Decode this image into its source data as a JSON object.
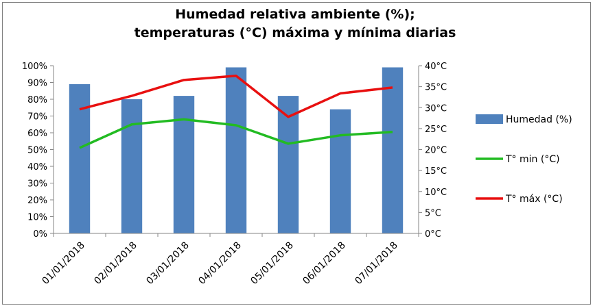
{
  "chart_data": {
    "type": "bar+line",
    "title_line1": "Humedad relativa ambiente (%);",
    "title_line2": "temperaturas (°C) máxima y mínima diarias",
    "categories": [
      "01/01/2018",
      "02/01/2018",
      "03/01/2018",
      "04/01/2018",
      "05/01/2018",
      "06/01/2018",
      "07/01/2018"
    ],
    "y_left": {
      "ylim": [
        0,
        100
      ],
      "ticks": [
        0,
        10,
        20,
        30,
        40,
        50,
        60,
        70,
        80,
        90,
        100
      ],
      "tick_labels": [
        "0%",
        "10%",
        "20%",
        "30%",
        "40%",
        "50%",
        "60%",
        "70%",
        "80%",
        "90%",
        "100%"
      ]
    },
    "y_right": {
      "ylim": [
        0,
        40
      ],
      "ticks": [
        0,
        5,
        10,
        15,
        20,
        25,
        30,
        35,
        40
      ],
      "tick_labels": [
        "0°C",
        "5°C",
        "10°C",
        "15°C",
        "20°C",
        "25°C",
        "30°C",
        "35°C",
        "40°C"
      ]
    },
    "series": [
      {
        "name": "Humedad (%)",
        "kind": "bar",
        "axis": "left",
        "color": "#4f81bd",
        "values": [
          89,
          80,
          82,
          99,
          82,
          74,
          99
        ]
      },
      {
        "name": "T° min (°C)",
        "kind": "line",
        "axis": "right",
        "color": "#22bb22",
        "values": [
          20.4,
          26.0,
          27.2,
          25.8,
          21.4,
          23.4,
          24.2
        ]
      },
      {
        "name": "T° máx (°C)",
        "kind": "line",
        "axis": "right",
        "color": "#e81010",
        "values": [
          29.6,
          32.8,
          36.6,
          37.6,
          27.8,
          33.4,
          34.8
        ]
      }
    ],
    "legend_position": "right",
    "grid": false
  }
}
